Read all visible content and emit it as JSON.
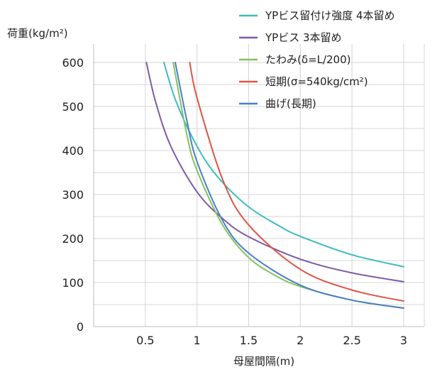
{
  "chart_data": {
    "type": "line",
    "xlabel": "母屋間隔(m)",
    "ylabel": "荷重(kg/m²)",
    "xlim": [
      0,
      3.2
    ],
    "ylim": [
      0,
      600
    ],
    "x_ticks": [
      "0.5",
      "1",
      "1.5",
      "2",
      "2.5",
      "3"
    ],
    "y_ticks": [
      "0",
      "100",
      "200",
      "300",
      "400",
      "500",
      "600"
    ],
    "grid": true,
    "legend_position": "top-right",
    "series": [
      {
        "name": "YPビス留付け強度 4本留め",
        "color": "#3bbcc3",
        "x": [
          0.68,
          0.8,
          1.0,
          1.2,
          1.5,
          1.8,
          2.0,
          2.5,
          3.0
        ],
        "y": [
          600,
          510,
          410,
          340,
          272,
          228,
          205,
          163,
          136
        ]
      },
      {
        "name": "YPビス 3本留め",
        "color": "#7e5aa8",
        "x": [
          0.51,
          0.6,
          0.75,
          1.0,
          1.25,
          1.5,
          2.0,
          2.5,
          3.0
        ],
        "y": [
          600,
          510,
          408,
          306,
          245,
          204,
          153,
          122,
          102
        ]
      },
      {
        "name": "たわみ(δ=L/200)",
        "color": "#86c25a",
        "x": [
          0.77,
          0.9,
          1.0,
          1.25,
          1.5,
          1.75,
          2.0,
          2.5,
          3.0
        ],
        "y": [
          600,
          438,
          355,
          230,
          157,
          117,
          91,
          60,
          42
        ]
      },
      {
        "name": "短期(σ=540kg/cm²)",
        "color": "#e05446",
        "x": [
          0.93,
          1.0,
          1.25,
          1.5,
          2.0,
          2.5,
          3.0
        ],
        "y": [
          600,
          520,
          333,
          231,
          130,
          83,
          58
        ]
      },
      {
        "name": "曲げ(長期)",
        "color": "#4a7fc8",
        "x": [
          0.79,
          0.9,
          1.0,
          1.25,
          1.5,
          2.0,
          2.5,
          3.0
        ],
        "y": [
          600,
          470,
          375,
          240,
          167,
          94,
          60,
          42
        ]
      }
    ]
  }
}
